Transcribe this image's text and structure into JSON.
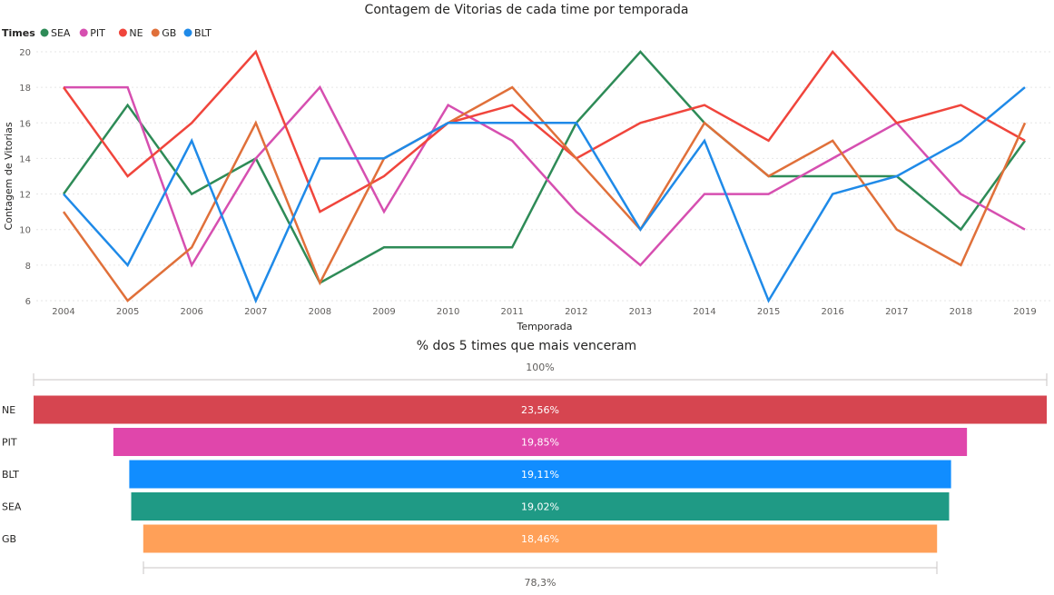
{
  "chart_data": [
    {
      "type": "line",
      "title": "Contagem de Vitorias de cada time por temporada",
      "legend_title": "Times",
      "legend_position": "top-left",
      "xlabel": "Temporada",
      "ylabel": "Contagem de Vitorias",
      "x": [
        2004,
        2005,
        2006,
        2007,
        2008,
        2009,
        2010,
        2011,
        2012,
        2013,
        2014,
        2015,
        2016,
        2017,
        2018,
        2019
      ],
      "yticks": [
        6,
        8,
        10,
        12,
        14,
        16,
        18,
        20
      ],
      "ylim": [
        6,
        20
      ],
      "grid": true,
      "series": [
        {
          "name": "SEA",
          "color": "#2e8b57",
          "values": [
            12,
            17,
            12,
            14,
            7,
            9,
            9,
            9,
            16,
            20,
            16,
            13,
            13,
            13,
            10,
            15
          ]
        },
        {
          "name": "PIT",
          "color": "#d64fb0",
          "values": [
            18,
            18,
            8,
            14,
            18,
            11,
            17,
            15,
            11,
            8,
            12,
            12,
            14,
            16,
            12,
            10
          ]
        },
        {
          "name": "NE",
          "color": "#f0453c",
          "values": [
            18,
            13,
            16,
            20,
            11,
            13,
            16,
            17,
            14,
            16,
            17,
            15,
            20,
            16,
            17,
            15
          ]
        },
        {
          "name": "GB",
          "color": "#e0703a",
          "values": [
            11,
            6,
            9,
            16,
            7,
            14,
            16,
            18,
            14,
            10,
            16,
            13,
            15,
            10,
            8,
            16
          ]
        },
        {
          "name": "BLT",
          "color": "#1f8ae8",
          "values": [
            12,
            8,
            15,
            6,
            14,
            14,
            16,
            16,
            16,
            10,
            15,
            6,
            12,
            13,
            15,
            18
          ]
        }
      ]
    },
    {
      "type": "bar",
      "subtype": "funnel",
      "title": "% dos 5 times que mais venceram",
      "categories": [
        "NE",
        "PIT",
        "BLT",
        "SEA",
        "GB"
      ],
      "values": [
        23.56,
        19.85,
        19.11,
        19.02,
        18.46
      ],
      "labels": [
        "23,56%",
        "19,85%",
        "19,11%",
        "19,02%",
        "18,46%"
      ],
      "colors": [
        "#d64550",
        "#e046ab",
        "#118dff",
        "#1f9a85",
        "#ffa058"
      ],
      "top_label": "100%",
      "bottom_label": "78,3%"
    }
  ]
}
